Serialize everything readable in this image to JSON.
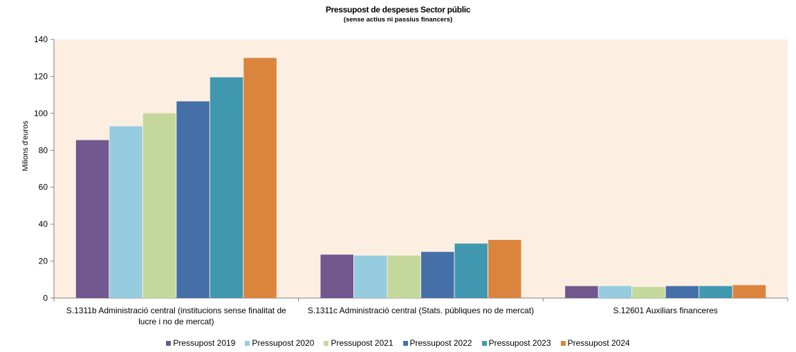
{
  "chart_data": {
    "type": "bar",
    "title": "Pressupost de despeses Sector públic",
    "subtitle": "(sense actius ni passius financers)",
    "xlabel": "",
    "ylabel": "Milions d'euros",
    "ylim": [
      0,
      140
    ],
    "yticks": [
      "0",
      "20",
      "40",
      "60",
      "80",
      "100",
      "120",
      "140"
    ],
    "grid": false,
    "legend_position": "bottom",
    "categories": [
      [
        "S.1311b Administració central (institucions sense finalitat de",
        "lucre i no de mercat)"
      ],
      [
        "S.1311c Administració central (Stats. públiques no de mercat)"
      ],
      [
        "S.12601 Auxiliars financeres"
      ]
    ],
    "series": [
      {
        "name": "Pressupost 2019",
        "color": "#71578e",
        "values": [
          85.5,
          23.5,
          6.5
        ]
      },
      {
        "name": "Pressupost 2020",
        "color": "#96cce0",
        "values": [
          93,
          23,
          6.5
        ]
      },
      {
        "name": "Pressupost 2021",
        "color": "#c4d89c",
        "values": [
          100,
          23,
          6
        ]
      },
      {
        "name": "Pressupost 2022",
        "color": "#4470a7",
        "values": [
          106.5,
          25,
          6.5
        ]
      },
      {
        "name": "Pressupost 2023",
        "color": "#3f98b0",
        "values": [
          119.5,
          29.5,
          6.5
        ]
      },
      {
        "name": "Pressupost 2024",
        "color": "#da843d",
        "values": [
          130,
          31.5,
          7
        ]
      }
    ],
    "plot_background": "#fcefe2"
  }
}
